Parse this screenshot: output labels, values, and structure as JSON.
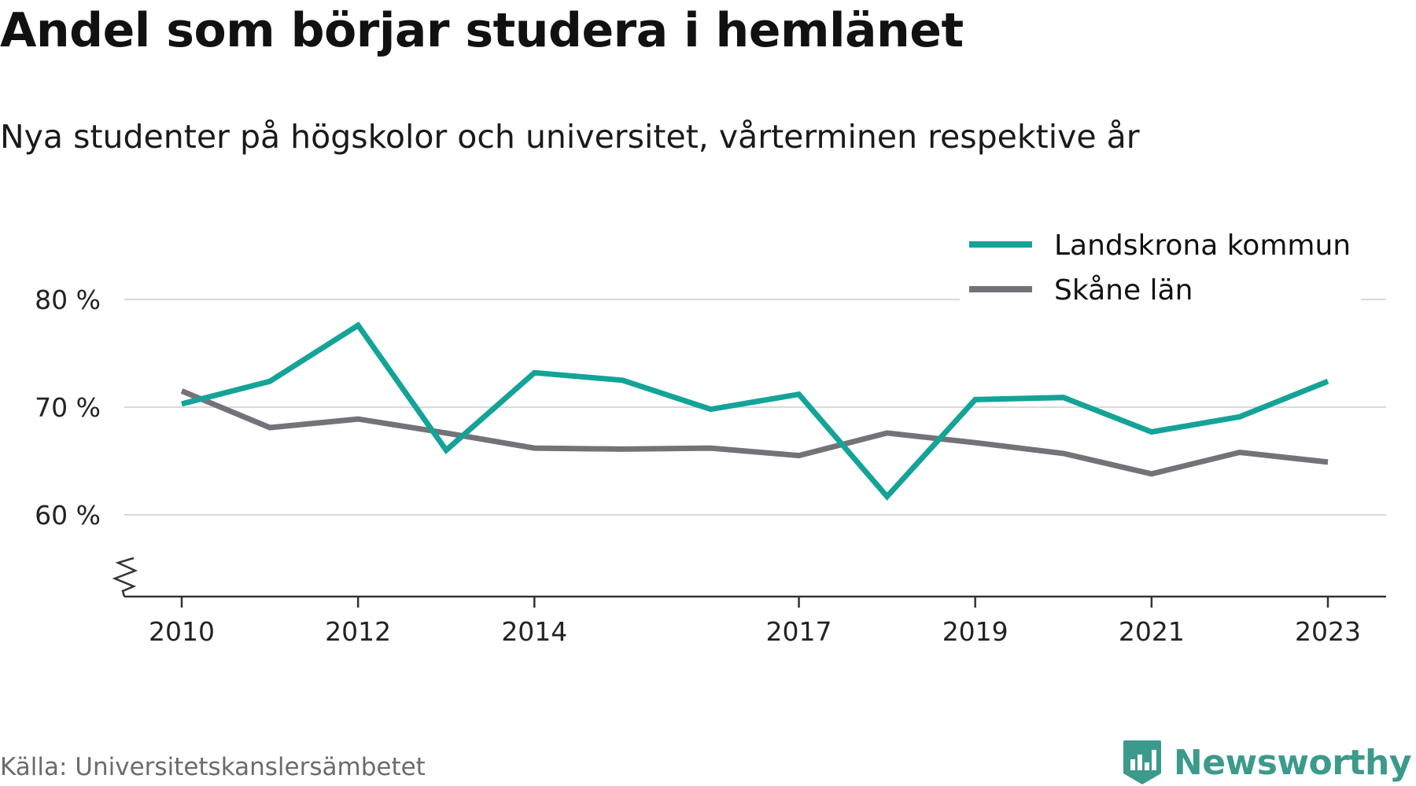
{
  "header": {
    "title": "Andel som börjar studera i hemlänet",
    "subtitle": "Nya studenter på högskolor och universitet, vårterminen respektive år"
  },
  "footer": {
    "source": "Källa: Universitetskanslersämbetet",
    "brand": "Newsworthy"
  },
  "colors": {
    "landskrona": "#14a397",
    "skane": "#737278",
    "grid": "#d9d9d9",
    "axis": "#333333",
    "brand": "#3b9a8c"
  },
  "chart_data": {
    "type": "line",
    "title": "Andel som börjar studera i hemlänet",
    "subtitle": "Nya studenter på högskolor och universitet, vårterminen respektive år",
    "x": [
      2010,
      2011,
      2012,
      2013,
      2014,
      2015,
      2016,
      2017,
      2018,
      2019,
      2020,
      2021,
      2022,
      2023
    ],
    "x_tick_values": [
      2010,
      2012,
      2014,
      2017,
      2019,
      2021,
      2023
    ],
    "x_tick_labels": [
      "2010",
      "2012",
      "2014",
      "2017",
      "2019",
      "2021",
      "2023"
    ],
    "y_tick_values": [
      60,
      70,
      80
    ],
    "y_tick_labels": [
      "60 %",
      "70 %",
      "80 %"
    ],
    "ylim": [
      53,
      83
    ],
    "axis_break": true,
    "grid": true,
    "legend_position": "top-right",
    "series": [
      {
        "name": "Landskrona kommun",
        "color": "#14a397",
        "values": [
          70.3,
          72.4,
          77.6,
          66.0,
          73.2,
          72.5,
          69.8,
          71.2,
          61.7,
          70.7,
          70.9,
          67.7,
          69.1,
          72.4
        ]
      },
      {
        "name": "Skåne län",
        "color": "#737278",
        "values": [
          71.5,
          68.1,
          68.9,
          67.6,
          66.2,
          66.1,
          66.2,
          65.5,
          67.6,
          66.7,
          65.7,
          63.8,
          65.8,
          64.9
        ]
      }
    ]
  }
}
